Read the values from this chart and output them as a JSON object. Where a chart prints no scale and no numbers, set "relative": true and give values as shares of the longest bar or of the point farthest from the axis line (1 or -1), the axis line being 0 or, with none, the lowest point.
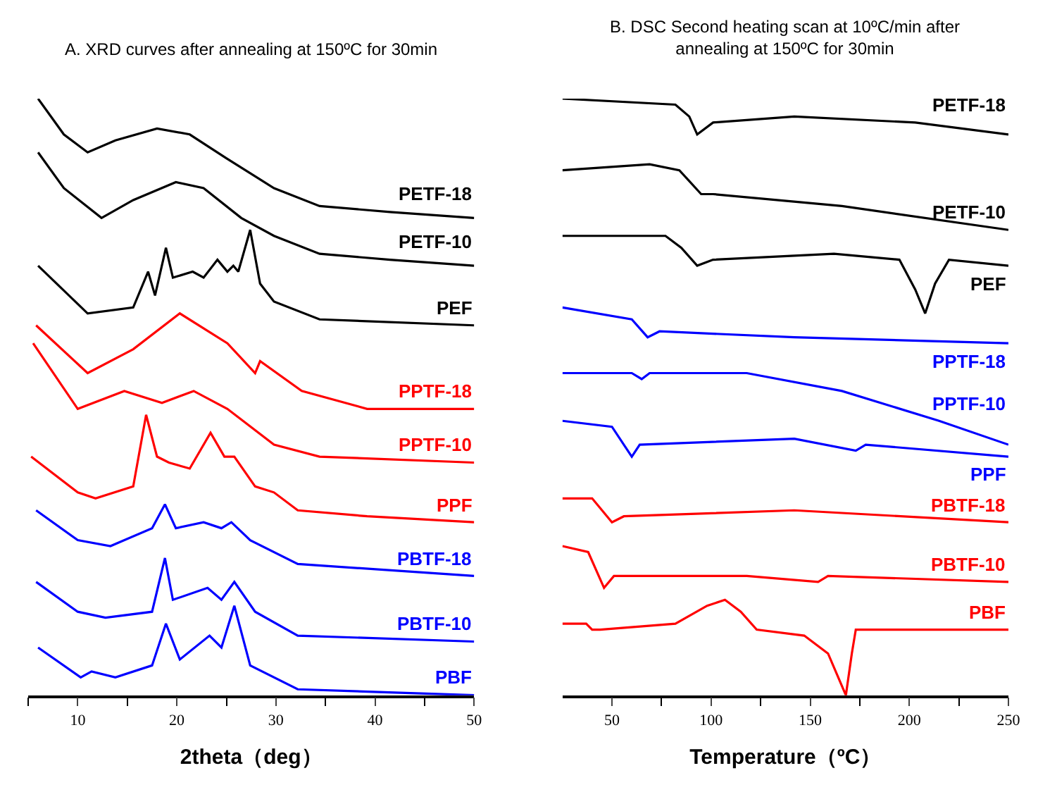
{
  "chart_data": [
    {
      "type": "line",
      "title": "A. XRD curves after annealing at 150ºC for 30min",
      "xlabel": "2theta（deg）",
      "relative": true,
      "legend": false,
      "xlim": [
        5,
        50
      ],
      "xticks": [
        {
          "value": 5,
          "label": null
        },
        10,
        {
          "value": 15,
          "label": null
        },
        20,
        {
          "value": 25,
          "label": null
        },
        30,
        {
          "value": 35,
          "label": null
        },
        40,
        {
          "value": 45,
          "label": null
        },
        50
      ],
      "series": [
        {
          "name": "PETF-18",
          "color": "#000000",
          "x": [
            6.0,
            8.6,
            11,
            13.8,
            18,
            21.3,
            25,
            29.8,
            34.4,
            41.5,
            50
          ],
          "values": [
            1.0,
            0.94,
            0.91,
            0.93,
            0.95,
            0.94,
            0.9,
            0.85,
            0.82,
            0.81,
            0.8
          ]
        },
        {
          "name": "PETF-10",
          "color": "#000000",
          "x": [
            6.0,
            8.6,
            12.4,
            15.6,
            19.9,
            22.7,
            26.5,
            29.8,
            34.4,
            41.5,
            50
          ],
          "values": [
            0.91,
            0.85,
            0.8,
            0.83,
            0.86,
            0.85,
            0.8,
            0.77,
            0.74,
            0.73,
            0.72
          ]
        },
        {
          "name": "PEF",
          "color": "#000000",
          "x": [
            6.0,
            11,
            15.6,
            17.1,
            17.8,
            18.9,
            19.6,
            21.6,
            22.7,
            24.1,
            25.1,
            25.7,
            26.2,
            27.4,
            28.4,
            29.8,
            34.4,
            50
          ],
          "values": [
            0.72,
            0.64,
            0.65,
            0.71,
            0.67,
            0.75,
            0.7,
            0.71,
            0.7,
            0.73,
            0.71,
            0.72,
            0.71,
            0.78,
            0.69,
            0.66,
            0.63,
            0.62
          ]
        },
        {
          "name": "PPTF-18",
          "color": "#ff0000",
          "x": [
            5.8,
            11,
            15.6,
            20.3,
            25.1,
            27.9,
            28.4,
            32.6,
            39.2,
            50
          ],
          "values": [
            0.62,
            0.54,
            0.58,
            0.64,
            0.59,
            0.54,
            0.56,
            0.51,
            0.48,
            0.48
          ]
        },
        {
          "name": "PPTF-10",
          "color": "#ff0000",
          "x": [
            5.5,
            10,
            14.7,
            18.5,
            21.7,
            25.1,
            29.8,
            34.4,
            50
          ],
          "values": [
            0.59,
            0.48,
            0.51,
            0.49,
            0.51,
            0.48,
            0.42,
            0.4,
            0.39
          ]
        },
        {
          "name": "PPF",
          "color": "#ff0000",
          "x": [
            5.3,
            10,
            11.8,
            15.6,
            16.9,
            18,
            19.2,
            21.3,
            23.4,
            24.8,
            25.8,
            27.9,
            29.8,
            32.2,
            39.2,
            50
          ],
          "values": [
            0.4,
            0.34,
            0.33,
            0.35,
            0.47,
            0.4,
            0.39,
            0.38,
            0.44,
            0.4,
            0.4,
            0.35,
            0.34,
            0.31,
            0.3,
            0.29
          ]
        },
        {
          "name": "PBTF-18",
          "color": "#0000ff",
          "x": [
            5.8,
            10,
            13.3,
            17.5,
            18.8,
            19.9,
            22.7,
            24.5,
            25.5,
            27.4,
            32.2,
            50
          ],
          "values": [
            0.31,
            0.26,
            0.25,
            0.28,
            0.32,
            0.28,
            0.29,
            0.28,
            0.29,
            0.26,
            0.22,
            0.2
          ]
        },
        {
          "name": "PBTF-10",
          "color": "#0000ff",
          "x": [
            5.8,
            10,
            12.8,
            17.5,
            18.8,
            19.6,
            23.1,
            24.5,
            25.8,
            27.9,
            32.2,
            50
          ],
          "values": [
            0.19,
            0.14,
            0.13,
            0.14,
            0.23,
            0.16,
            0.18,
            0.16,
            0.19,
            0.14,
            0.1,
            0.09
          ]
        },
        {
          "name": "PBF",
          "color": "#0000ff",
          "x": [
            6.0,
            10.3,
            11.4,
            13.8,
            17.5,
            18.9,
            20.3,
            23.3,
            24.5,
            25.8,
            27.4,
            32.2,
            50
          ],
          "values": [
            0.08,
            0.03,
            0.04,
            0.03,
            0.05,
            0.12,
            0.06,
            0.1,
            0.08,
            0.15,
            0.05,
            0.01,
            0
          ]
        }
      ]
    },
    {
      "type": "line",
      "title": "B. DSC Second heating scan at 10ºC/min after\nannealing at 150ºC for 30min",
      "xlabel": "Temperature（ºC）",
      "relative": true,
      "legend": false,
      "xlim": [
        25,
        250
      ],
      "xticks": [
        50,
        {
          "value": 75,
          "label": null
        },
        100,
        {
          "value": 125,
          "label": null
        },
        150,
        {
          "value": 175,
          "label": null
        },
        200,
        {
          "value": 225,
          "label": null
        },
        250
      ],
      "series": [
        {
          "name": "PETF-18",
          "color": "#000000",
          "x": [
            25,
            82,
            89,
            93,
            101,
            142,
            203,
            250
          ],
          "values": [
            1.0,
            0.99,
            0.97,
            0.94,
            0.96,
            0.97,
            0.96,
            0.94
          ]
        },
        {
          "name": "PETF-10",
          "color": "#000000",
          "x": [
            25,
            69,
            84,
            95,
            101,
            166,
            250
          ],
          "values": [
            0.88,
            0.89,
            0.88,
            0.84,
            0.84,
            0.82,
            0.78
          ]
        },
        {
          "name": "PEF",
          "color": "#000000",
          "x": [
            25,
            77,
            85,
            93,
            101,
            162,
            195,
            203,
            208,
            213,
            220,
            250
          ],
          "values": [
            0.77,
            0.77,
            0.75,
            0.72,
            0.73,
            0.74,
            0.73,
            0.68,
            0.64,
            0.69,
            0.73,
            0.72
          ]
        },
        {
          "name": "PPTF-18",
          "color": "#0000ff",
          "x": [
            25,
            60,
            68,
            74,
            142,
            250
          ],
          "values": [
            0.65,
            0.63,
            0.6,
            0.61,
            0.6,
            0.59
          ]
        },
        {
          "name": "PPTF-10",
          "color": "#0000ff",
          "x": [
            25,
            60,
            65,
            69,
            118,
            166,
            215,
            250
          ],
          "values": [
            0.54,
            0.54,
            0.53,
            0.54,
            0.54,
            0.51,
            0.46,
            0.42
          ]
        },
        {
          "name": "PPF",
          "color": "#0000ff",
          "x": [
            25,
            50,
            60,
            64,
            142,
            173,
            178,
            250
          ],
          "values": [
            0.46,
            0.45,
            0.4,
            0.42,
            0.43,
            0.41,
            0.42,
            0.4
          ]
        },
        {
          "name": "PBTF-18",
          "color": "#ff0000",
          "x": [
            25,
            40,
            50,
            56,
            142,
            250
          ],
          "values": [
            0.33,
            0.33,
            0.29,
            0.3,
            0.31,
            0.29
          ]
        },
        {
          "name": "PBTF-10",
          "color": "#ff0000",
          "x": [
            25,
            38,
            46,
            51,
            118,
            154,
            159,
            250
          ],
          "values": [
            0.25,
            0.24,
            0.18,
            0.2,
            0.2,
            0.19,
            0.2,
            0.19
          ]
        },
        {
          "name": "PBF",
          "color": "#ff0000",
          "x": [
            25,
            37,
            40,
            44,
            82,
            98,
            107,
            115,
            123,
            147,
            159,
            168,
            171,
            173,
            250
          ],
          "values": [
            0.12,
            0.12,
            0.11,
            0.11,
            0.12,
            0.15,
            0.16,
            0.14,
            0.11,
            0.1,
            0.07,
            0,
            0.07,
            0.11,
            0.11
          ]
        }
      ]
    }
  ]
}
